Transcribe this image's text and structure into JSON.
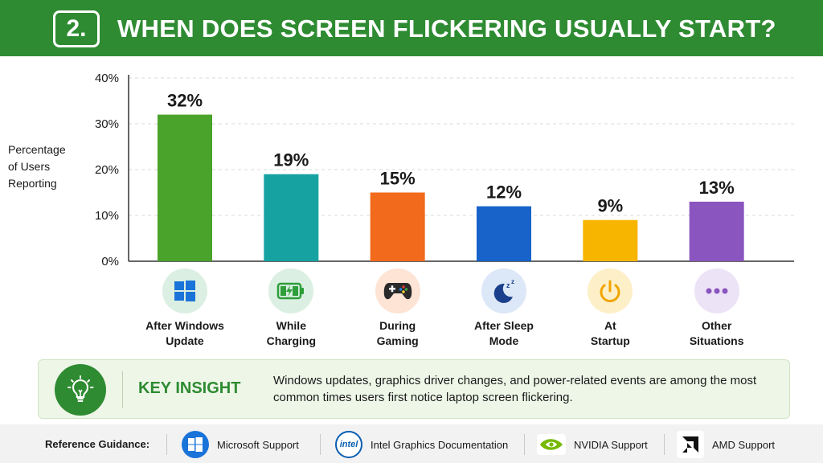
{
  "header": {
    "number": "2.",
    "title": "WHEN DOES SCREEN FLICKERING USUALLY START?"
  },
  "chart_data": {
    "type": "bar",
    "categories": [
      "After Windows\nUpdate",
      "While\nCharging",
      "During\nGaming",
      "After Sleep\nMode",
      "At\nStartup",
      "Other\nSituations"
    ],
    "values": [
      32,
      19,
      15,
      12,
      9,
      13
    ],
    "data_labels": [
      "32%",
      "19%",
      "15%",
      "12%",
      "9%",
      "13%"
    ],
    "colors": [
      "#4aa32a",
      "#17a2a2",
      "#f26a1b",
      "#1763c9",
      "#f7b500",
      "#8a55bf"
    ],
    "ylabel": "Percentage\nof Users\nReporting",
    "ylim": [
      0,
      40
    ],
    "yticks": [
      "0%",
      "10%",
      "20%",
      "30%",
      "40%"
    ],
    "grid": true,
    "icons": [
      "windows-icon",
      "battery-charging-icon",
      "gamepad-icon",
      "moon-sleep-icon",
      "power-icon",
      "more-dots-icon"
    ]
  },
  "insight": {
    "title": "KEY INSIGHT",
    "text": "Windows updates, graphics driver changes, and power-related events are among the most common times users first notice laptop screen flickering."
  },
  "references": {
    "label": "Reference Guidance:",
    "items": [
      {
        "name": "Microsoft Support",
        "icon": "microsoft-windows-logo"
      },
      {
        "name": "Intel Graphics Documentation",
        "icon": "intel-logo"
      },
      {
        "name": "NVIDIA Support",
        "icon": "nvidia-logo"
      },
      {
        "name": "AMD Support",
        "icon": "amd-logo"
      }
    ]
  },
  "theme": {
    "accent": "#2e8b32"
  }
}
